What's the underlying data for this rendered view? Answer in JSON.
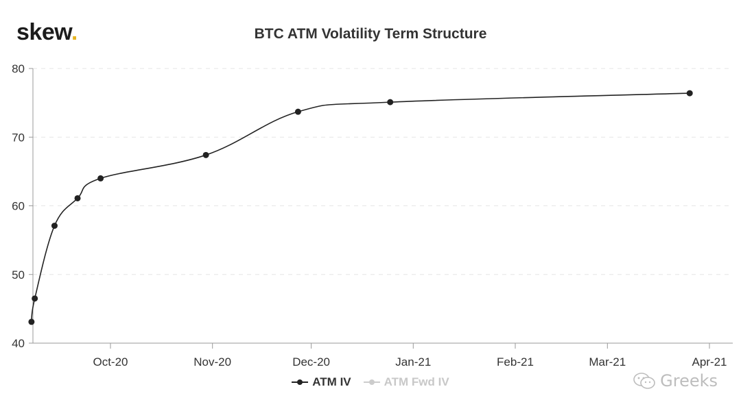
{
  "brand": {
    "name": "skew",
    "dot": "."
  },
  "watermark": {
    "text": "Greeks",
    "icon": "wechat-icon"
  },
  "chart_data": {
    "type": "line",
    "title": "BTC ATM Volatility Term Structure",
    "xlabel": "",
    "ylabel": "",
    "x_tick_labels": [
      "Oct-20",
      "Nov-20",
      "Dec-20",
      "Jan-21",
      "Feb-21",
      "Mar-21",
      "Apr-21"
    ],
    "x_tick_dates": [
      "2020-10-01",
      "2020-11-01",
      "2020-12-01",
      "2021-01-01",
      "2021-02-01",
      "2021-03-01",
      "2021-04-01"
    ],
    "xlim": [
      "2020-09-08",
      "2021-04-01"
    ],
    "ylim": [
      40,
      80
    ],
    "y_ticks": [
      40,
      50,
      60,
      70,
      80
    ],
    "grid": true,
    "legend_position": "bottom",
    "series": [
      {
        "name": "ATM IV",
        "color": "#222222",
        "visible": true,
        "points": [
          {
            "x": "2020-09-07",
            "y": 43.1
          },
          {
            "x": "2020-09-08",
            "y": 46.5
          },
          {
            "x": "2020-09-14",
            "y": 57.1
          },
          {
            "x": "2020-09-21",
            "y": 61.1
          },
          {
            "x": "2020-09-28",
            "y": 64.0
          },
          {
            "x": "2020-10-30",
            "y": 67.4
          },
          {
            "x": "2020-11-27",
            "y": 73.7
          },
          {
            "x": "2020-12-25",
            "y": 75.1
          },
          {
            "x": "2021-03-26",
            "y": 76.4
          }
        ]
      },
      {
        "name": "ATM Fwd IV",
        "color": "#c8c8c8",
        "visible": false,
        "points": []
      }
    ]
  }
}
